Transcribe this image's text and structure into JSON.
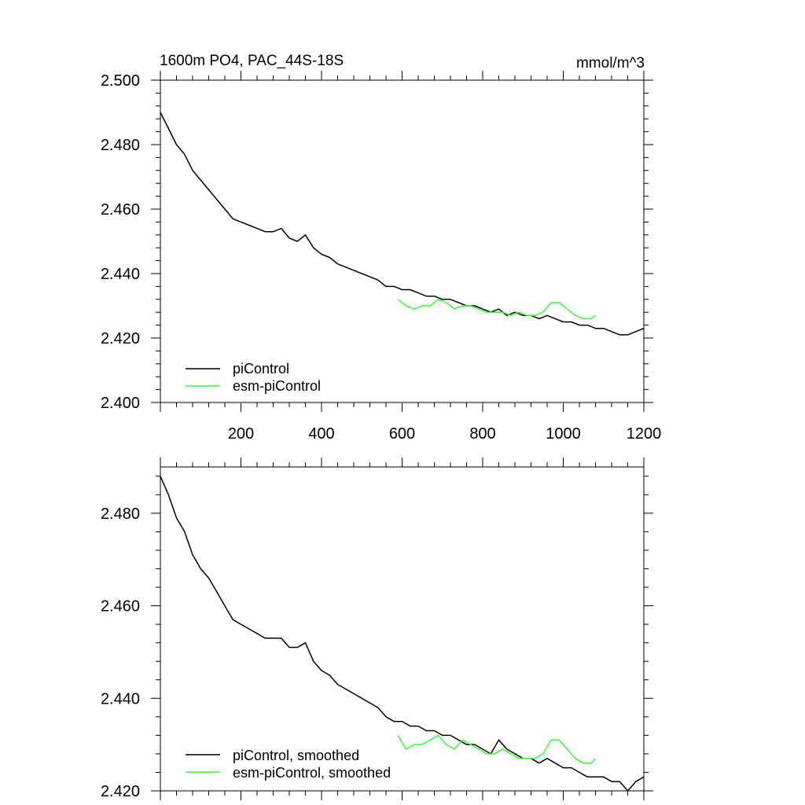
{
  "chart_data": [
    {
      "type": "line",
      "title": "1600m PO4, PAC_44S-18S",
      "units": "mmol/m^3",
      "xlim": [
        0,
        1200
      ],
      "ylim": [
        2.4,
        2.5
      ],
      "x_ticks": [
        200,
        400,
        600,
        800,
        1000,
        1200
      ],
      "x_tick_labels": [
        "200",
        "400",
        "600",
        "800",
        "1000",
        "1200"
      ],
      "y_ticks": [
        2.4,
        2.42,
        2.44,
        2.46,
        2.48,
        2.5
      ],
      "y_tick_labels": [
        "2.400",
        "2.420",
        "2.440",
        "2.460",
        "2.480",
        "2.500"
      ],
      "legend": [
        "piControl",
        "esm-piControl"
      ],
      "series": [
        {
          "name": "piControl",
          "color": "#000000",
          "x": [
            0,
            20,
            40,
            60,
            80,
            100,
            120,
            140,
            160,
            180,
            200,
            220,
            240,
            260,
            280,
            300,
            320,
            340,
            360,
            380,
            400,
            420,
            440,
            460,
            480,
            500,
            520,
            540,
            560,
            580,
            600,
            620,
            640,
            660,
            680,
            700,
            720,
            740,
            760,
            780,
            800,
            820,
            840,
            860,
            880,
            900,
            920,
            940,
            960,
            980,
            1000,
            1020,
            1040,
            1060,
            1080,
            1100,
            1120,
            1140,
            1160,
            1180,
            1200
          ],
          "values": [
            2.49,
            2.485,
            2.48,
            2.477,
            2.472,
            2.469,
            2.466,
            2.463,
            2.46,
            2.457,
            2.456,
            2.455,
            2.454,
            2.453,
            2.453,
            2.454,
            2.451,
            2.45,
            2.452,
            2.448,
            2.446,
            2.445,
            2.443,
            2.442,
            2.441,
            2.44,
            2.439,
            2.438,
            2.436,
            2.436,
            2.435,
            2.435,
            2.434,
            2.433,
            2.433,
            2.432,
            2.432,
            2.431,
            2.43,
            2.43,
            2.429,
            2.428,
            2.429,
            2.427,
            2.428,
            2.427,
            2.427,
            2.426,
            2.427,
            2.426,
            2.425,
            2.425,
            2.424,
            2.424,
            2.423,
            2.423,
            2.422,
            2.421,
            2.421,
            2.422,
            2.423
          ]
        },
        {
          "name": "esm-piControl",
          "color": "#33ff33",
          "x": [
            590,
            610,
            630,
            650,
            670,
            690,
            710,
            730,
            750,
            770,
            790,
            810,
            830,
            850,
            870,
            890,
            910,
            930,
            950,
            970,
            990,
            1010,
            1030,
            1050,
            1070,
            1080
          ],
          "values": [
            2.432,
            2.43,
            2.429,
            2.43,
            2.43,
            2.432,
            2.431,
            2.429,
            2.43,
            2.43,
            2.429,
            2.428,
            2.428,
            2.428,
            2.427,
            2.428,
            2.427,
            2.427,
            2.428,
            2.431,
            2.431,
            2.429,
            2.427,
            2.426,
            2.426,
            2.427
          ]
        }
      ]
    },
    {
      "type": "line",
      "xlim": [
        0,
        1200
      ],
      "ylim": [
        2.42,
        2.49
      ],
      "x_ticks": [
        200,
        400,
        600,
        800,
        1000,
        1200
      ],
      "y_ticks": [
        2.42,
        2.44,
        2.46,
        2.48
      ],
      "y_tick_labels": [
        "2.420",
        "2.440",
        "2.460",
        "2.480"
      ],
      "legend": [
        "piControl, smoothed",
        "esm-piControl, smoothed"
      ],
      "series": [
        {
          "name": "piControl, smoothed",
          "color": "#000000",
          "x": [
            0,
            20,
            40,
            60,
            80,
            100,
            120,
            140,
            160,
            180,
            200,
            220,
            240,
            260,
            280,
            300,
            320,
            340,
            360,
            380,
            400,
            420,
            440,
            460,
            480,
            500,
            520,
            540,
            560,
            580,
            600,
            620,
            640,
            660,
            680,
            700,
            720,
            740,
            760,
            780,
            800,
            820,
            840,
            860,
            880,
            900,
            920,
            940,
            960,
            980,
            1000,
            1020,
            1040,
            1060,
            1080,
            1100,
            1120,
            1140,
            1160,
            1180,
            1200
          ],
          "values": [
            2.488,
            2.484,
            2.479,
            2.476,
            2.471,
            2.468,
            2.466,
            2.463,
            2.46,
            2.457,
            2.456,
            2.455,
            2.454,
            2.453,
            2.453,
            2.453,
            2.451,
            2.451,
            2.452,
            2.448,
            2.446,
            2.445,
            2.443,
            2.442,
            2.441,
            2.44,
            2.439,
            2.438,
            2.436,
            2.435,
            2.435,
            2.434,
            2.434,
            2.433,
            2.433,
            2.432,
            2.432,
            2.431,
            2.43,
            2.43,
            2.429,
            2.428,
            2.431,
            2.429,
            2.428,
            2.427,
            2.427,
            2.426,
            2.427,
            2.426,
            2.425,
            2.425,
            2.424,
            2.423,
            2.423,
            2.423,
            2.422,
            2.422,
            2.42,
            2.422,
            2.423
          ]
        },
        {
          "name": "esm-piControl, smoothed",
          "color": "#33ff33",
          "x": [
            590,
            610,
            630,
            650,
            670,
            690,
            710,
            730,
            750,
            770,
            790,
            810,
            830,
            850,
            870,
            890,
            910,
            930,
            950,
            970,
            990,
            1010,
            1030,
            1050,
            1070,
            1080
          ],
          "values": [
            2.432,
            2.429,
            2.43,
            2.43,
            2.431,
            2.432,
            2.43,
            2.429,
            2.431,
            2.43,
            2.429,
            2.428,
            2.428,
            2.429,
            2.428,
            2.427,
            2.427,
            2.427,
            2.428,
            2.431,
            2.431,
            2.429,
            2.427,
            2.426,
            2.426,
            2.427
          ]
        }
      ]
    }
  ]
}
